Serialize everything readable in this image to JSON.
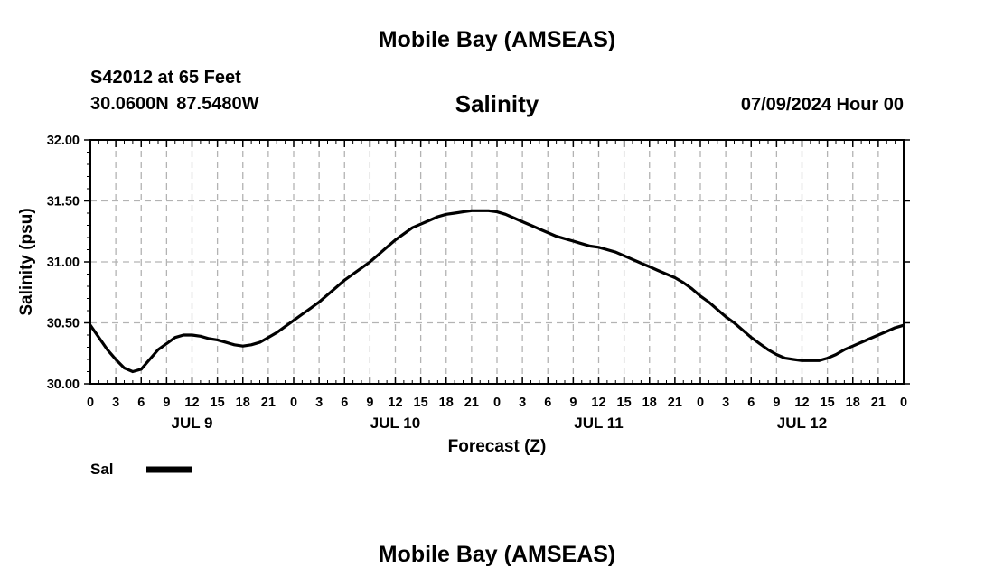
{
  "header": {
    "title": "Mobile Bay (AMSEAS)",
    "station": "S42012 at 65 Feet",
    "coordinates": "30.0600N  87.5480W",
    "datetime": "07/09/2024 Hour 00"
  },
  "footer": {
    "title": "Mobile Bay (AMSEAS)"
  },
  "chart_data": {
    "type": "line",
    "title": "Salinity",
    "xlabel": "Forecast (Z)",
    "ylabel": "Salinity (psu)",
    "ylim": [
      30.0,
      32.0
    ],
    "y_ticks": [
      "30.00",
      "30.50",
      "31.00",
      "31.50",
      "32.00"
    ],
    "x_range_hours": [
      0,
      96
    ],
    "x_tick_labels": [
      "0",
      "3",
      "6",
      "9",
      "12",
      "15",
      "18",
      "21",
      "0",
      "3",
      "6",
      "9",
      "12",
      "15",
      "18",
      "21",
      "0",
      "3",
      "6",
      "9",
      "12",
      "15",
      "18",
      "21",
      "0",
      "3",
      "6",
      "9",
      "12",
      "15",
      "18",
      "21",
      "0"
    ],
    "day_labels": [
      {
        "label": "JUL 9",
        "hour": 12
      },
      {
        "label": "JUL 10",
        "hour": 36
      },
      {
        "label": "JUL 11",
        "hour": 60
      },
      {
        "label": "JUL 12",
        "hour": 84
      }
    ],
    "grid": true,
    "legend": {
      "position": "bottom-left",
      "entries": [
        "Sal"
      ]
    },
    "series": [
      {
        "name": "Sal",
        "color": "#000000",
        "x": [
          0,
          1,
          2,
          3,
          4,
          5,
          6,
          7,
          8,
          9,
          10,
          11,
          12,
          13,
          14,
          15,
          16,
          17,
          18,
          19,
          20,
          21,
          22,
          23,
          24,
          25,
          26,
          27,
          28,
          29,
          30,
          31,
          32,
          33,
          34,
          35,
          36,
          37,
          38,
          39,
          40,
          41,
          42,
          43,
          44,
          45,
          46,
          47,
          48,
          49,
          50,
          51,
          52,
          53,
          54,
          55,
          56,
          57,
          58,
          59,
          60,
          61,
          62,
          63,
          64,
          65,
          66,
          67,
          68,
          69,
          70,
          71,
          72,
          73,
          74,
          75,
          76,
          77,
          78,
          79,
          80,
          81,
          82,
          83,
          84,
          85,
          86,
          87,
          88,
          89,
          90,
          91,
          92,
          93,
          94,
          95,
          96
        ],
        "y": [
          30.48,
          30.38,
          30.28,
          30.2,
          30.13,
          30.1,
          30.12,
          30.2,
          30.28,
          30.33,
          30.38,
          30.4,
          30.4,
          30.39,
          30.37,
          30.36,
          30.34,
          30.32,
          30.31,
          30.32,
          30.34,
          30.38,
          30.42,
          30.47,
          30.52,
          30.57,
          30.62,
          30.67,
          30.73,
          30.79,
          30.85,
          30.9,
          30.95,
          31.0,
          31.06,
          31.12,
          31.18,
          31.23,
          31.28,
          31.31,
          31.34,
          31.37,
          31.39,
          31.4,
          31.41,
          31.42,
          31.42,
          31.42,
          31.41,
          31.39,
          31.36,
          31.33,
          31.3,
          31.27,
          31.24,
          31.21,
          31.19,
          31.17,
          31.15,
          31.13,
          31.12,
          31.1,
          31.08,
          31.05,
          31.02,
          30.99,
          30.96,
          30.93,
          30.9,
          30.87,
          30.83,
          30.78,
          30.72,
          30.67,
          30.61,
          30.55,
          30.5,
          30.44,
          30.38,
          30.33,
          30.28,
          30.24,
          30.21,
          30.2,
          30.19,
          30.19,
          30.19,
          30.21,
          30.24,
          30.28,
          30.31,
          30.34,
          30.37,
          30.4,
          30.43,
          30.46,
          30.48
        ]
      }
    ]
  }
}
